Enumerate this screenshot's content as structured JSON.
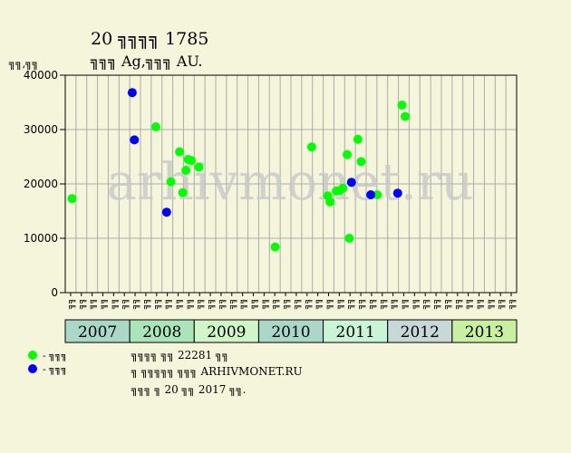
{
  "header": {
    "title_line1": "20 ╗╗╗╗ 1785",
    "title_line2": "╗╗╗ Ag,╗╗╗ AU.",
    "y_unit": "╗╗,╗╗"
  },
  "watermark": "arhivmonet.ru",
  "legend": [
    {
      "label": "- ╗╗╗",
      "color": "#00ff00"
    },
    {
      "label": "- ╗╗╗",
      "color": "#0000ff"
    }
  ],
  "footer": {
    "line1": "╗╗╗╗ ╗╗ 22281 ╗╗",
    "line2": "╗ ╗╗╗╗╗ ╗╗╗ ARHIVMONET.RU",
    "line3": "╗╗╗ ╗ 20 ╗╗ 2017 ╗╗."
  },
  "colors": {
    "background": "#f5f5dc",
    "plot_background": "#f5f5dc",
    "grid": "#aaaaaa",
    "green": "#00ff00",
    "blue": "#0000ff",
    "year_colors": [
      "#a9d8c8",
      "#a9e5b8",
      "#d0f5c8",
      "#a9d8c8",
      "#c8f5d8",
      "#c8d8d8",
      "#c8f0a0"
    ]
  },
  "chart_data": {
    "type": "scatter",
    "ylim": [
      0,
      40000
    ],
    "yticks": [
      "0",
      "10000",
      "20000",
      "30000",
      "40000"
    ],
    "years": [
      "2007",
      "2008",
      "2009",
      "2010",
      "2011",
      "2012",
      "2013"
    ],
    "x_tick_labels": [
      "╗╗",
      "╗╗",
      "╗╗",
      "╗╗",
      "╗╗",
      "╗╗",
      "╗╗",
      "╗╗",
      "╗╗",
      "╗╗",
      "╗╗",
      "╗╗",
      "╗╗",
      "╗╗",
      "╗╗",
      "╗╗",
      "╗╗",
      "╗╗",
      "╗╗",
      "╗╗",
      "╗╗",
      "╗╗",
      "╗╗",
      "╗╗",
      "╗╗",
      "╗╗",
      "╗╗",
      "╗╗",
      "╗╗",
      "╗╗",
      "╗╗",
      "╗╗",
      "╗╗",
      "╗╗",
      "╗╗",
      "╗╗",
      "╗╗",
      "╗╗",
      "╗╗",
      "╗╗",
      "╗╗",
      "╗╗"
    ],
    "series": [
      {
        "color": "green",
        "points": [
          {
            "x": 0.0,
            "y": 17300
          },
          {
            "x": 7.8,
            "y": 30500
          },
          {
            "x": 9.2,
            "y": 20400
          },
          {
            "x": 10.0,
            "y": 25900
          },
          {
            "x": 10.3,
            "y": 18400
          },
          {
            "x": 10.6,
            "y": 22500
          },
          {
            "x": 10.8,
            "y": 24500
          },
          {
            "x": 11.1,
            "y": 24300
          },
          {
            "x": 11.8,
            "y": 23100
          },
          {
            "x": 18.9,
            "y": 8400
          },
          {
            "x": 22.3,
            "y": 26800
          },
          {
            "x": 23.8,
            "y": 17800
          },
          {
            "x": 24.0,
            "y": 16700
          },
          {
            "x": 24.6,
            "y": 18700
          },
          {
            "x": 24.9,
            "y": 18800
          },
          {
            "x": 25.2,
            "y": 19200
          },
          {
            "x": 25.6,
            "y": 25400
          },
          {
            "x": 25.8,
            "y": 10000
          },
          {
            "x": 26.6,
            "y": 28200
          },
          {
            "x": 26.9,
            "y": 24100
          },
          {
            "x": 28.4,
            "y": 18000
          },
          {
            "x": 30.7,
            "y": 34500
          },
          {
            "x": 31.0,
            "y": 32400
          }
        ]
      },
      {
        "color": "blue",
        "points": [
          {
            "x": 5.6,
            "y": 36800
          },
          {
            "x": 5.8,
            "y": 28100
          },
          {
            "x": 8.8,
            "y": 14800
          },
          {
            "x": 26.0,
            "y": 20300
          },
          {
            "x": 27.8,
            "y": 18000
          },
          {
            "x": 30.3,
            "y": 18300
          }
        ]
      }
    ]
  }
}
